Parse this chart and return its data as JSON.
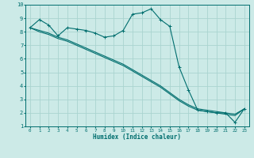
{
  "xlabel": "Humidex (Indice chaleur)",
  "xlim": [
    -0.5,
    23.5
  ],
  "ylim": [
    1,
    10
  ],
  "yticks": [
    1,
    2,
    3,
    4,
    5,
    6,
    7,
    8,
    9,
    10
  ],
  "xticks": [
    0,
    1,
    2,
    3,
    4,
    5,
    6,
    7,
    8,
    9,
    10,
    11,
    12,
    13,
    14,
    15,
    16,
    17,
    18,
    19,
    20,
    21,
    22,
    23
  ],
  "background_color": "#cceae7",
  "grid_color": "#aad4d0",
  "line_color": "#006e6e",
  "line1_x": [
    0,
    1,
    2,
    3,
    4,
    5,
    6,
    7,
    8,
    9,
    10,
    11,
    12,
    13,
    14,
    15,
    16,
    17,
    18,
    19,
    20,
    21,
    22,
    23
  ],
  "line1_y": [
    8.3,
    8.9,
    8.5,
    7.7,
    8.3,
    8.2,
    8.1,
    7.9,
    7.6,
    7.7,
    8.1,
    9.3,
    9.4,
    9.7,
    8.9,
    8.4,
    5.4,
    3.7,
    2.2,
    2.1,
    2.0,
    2.0,
    1.3,
    2.3
  ],
  "line2_x": [
    0,
    1,
    2,
    3,
    4,
    5,
    6,
    7,
    8,
    9,
    10,
    11,
    12,
    13,
    14,
    15,
    16,
    17,
    18,
    19,
    20,
    21,
    22,
    23
  ],
  "line2_y": [
    8.3,
    8.1,
    7.9,
    7.6,
    7.4,
    7.1,
    6.8,
    6.5,
    6.2,
    5.9,
    5.6,
    5.2,
    4.8,
    4.4,
    4.0,
    3.5,
    3.0,
    2.6,
    2.3,
    2.2,
    2.1,
    2.0,
    1.9,
    2.3
  ],
  "line3_x": [
    0,
    1,
    2,
    3,
    4,
    5,
    6,
    7,
    8,
    9,
    10,
    11,
    12,
    13,
    14,
    15,
    16,
    17,
    18,
    19,
    20,
    21,
    22,
    23
  ],
  "line3_y": [
    8.3,
    8.0,
    7.8,
    7.5,
    7.3,
    7.0,
    6.7,
    6.4,
    6.1,
    5.8,
    5.5,
    5.1,
    4.7,
    4.3,
    3.9,
    3.4,
    2.9,
    2.5,
    2.2,
    2.1,
    2.0,
    1.9,
    1.8,
    2.3
  ]
}
